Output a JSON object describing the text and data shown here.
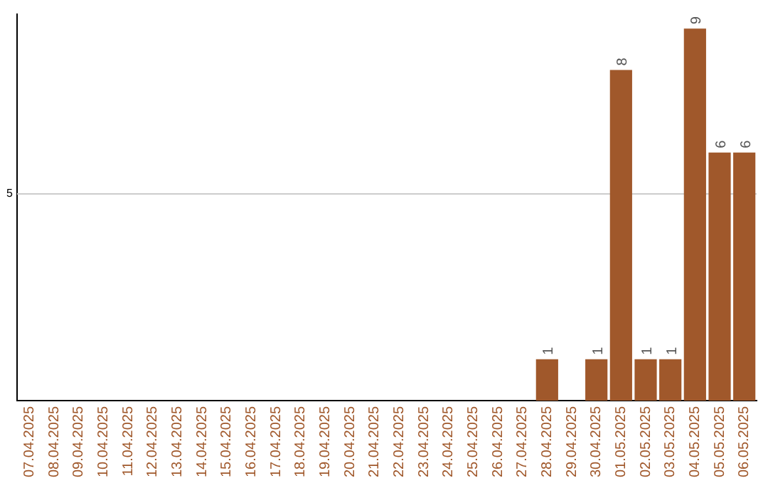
{
  "chart_data": {
    "type": "bar",
    "categories": [
      "07.04.2025",
      "08.04.2025",
      "09.04.2025",
      "10.04.2025",
      "11.04.2025",
      "12.04.2025",
      "13.04.2025",
      "14.04.2025",
      "15.04.2025",
      "16.04.2025",
      "17.04.2025",
      "18.04.2025",
      "19.04.2025",
      "20.04.2025",
      "21.04.2025",
      "22.04.2025",
      "23.04.2025",
      "24.04.2025",
      "25.04.2025",
      "26.04.2025",
      "27.04.2025",
      "28.04.2025",
      "29.04.2025",
      "30.04.2025",
      "01.05.2025",
      "02.05.2025",
      "03.05.2025",
      "04.05.2025",
      "05.05.2025",
      "06.05.2025"
    ],
    "values": [
      null,
      null,
      null,
      null,
      null,
      null,
      null,
      null,
      null,
      null,
      null,
      null,
      null,
      null,
      null,
      null,
      null,
      null,
      null,
      null,
      null,
      1,
      null,
      1,
      8,
      1,
      1,
      9,
      6,
      6
    ],
    "data_labels": true,
    "color": "#a0582b",
    "ylim": [
      0,
      9.35
    ],
    "ref_lines": [
      {
        "axis": "y",
        "value": 5,
        "label": "5",
        "color": "#cccccc"
      }
    ],
    "legend": false
  }
}
